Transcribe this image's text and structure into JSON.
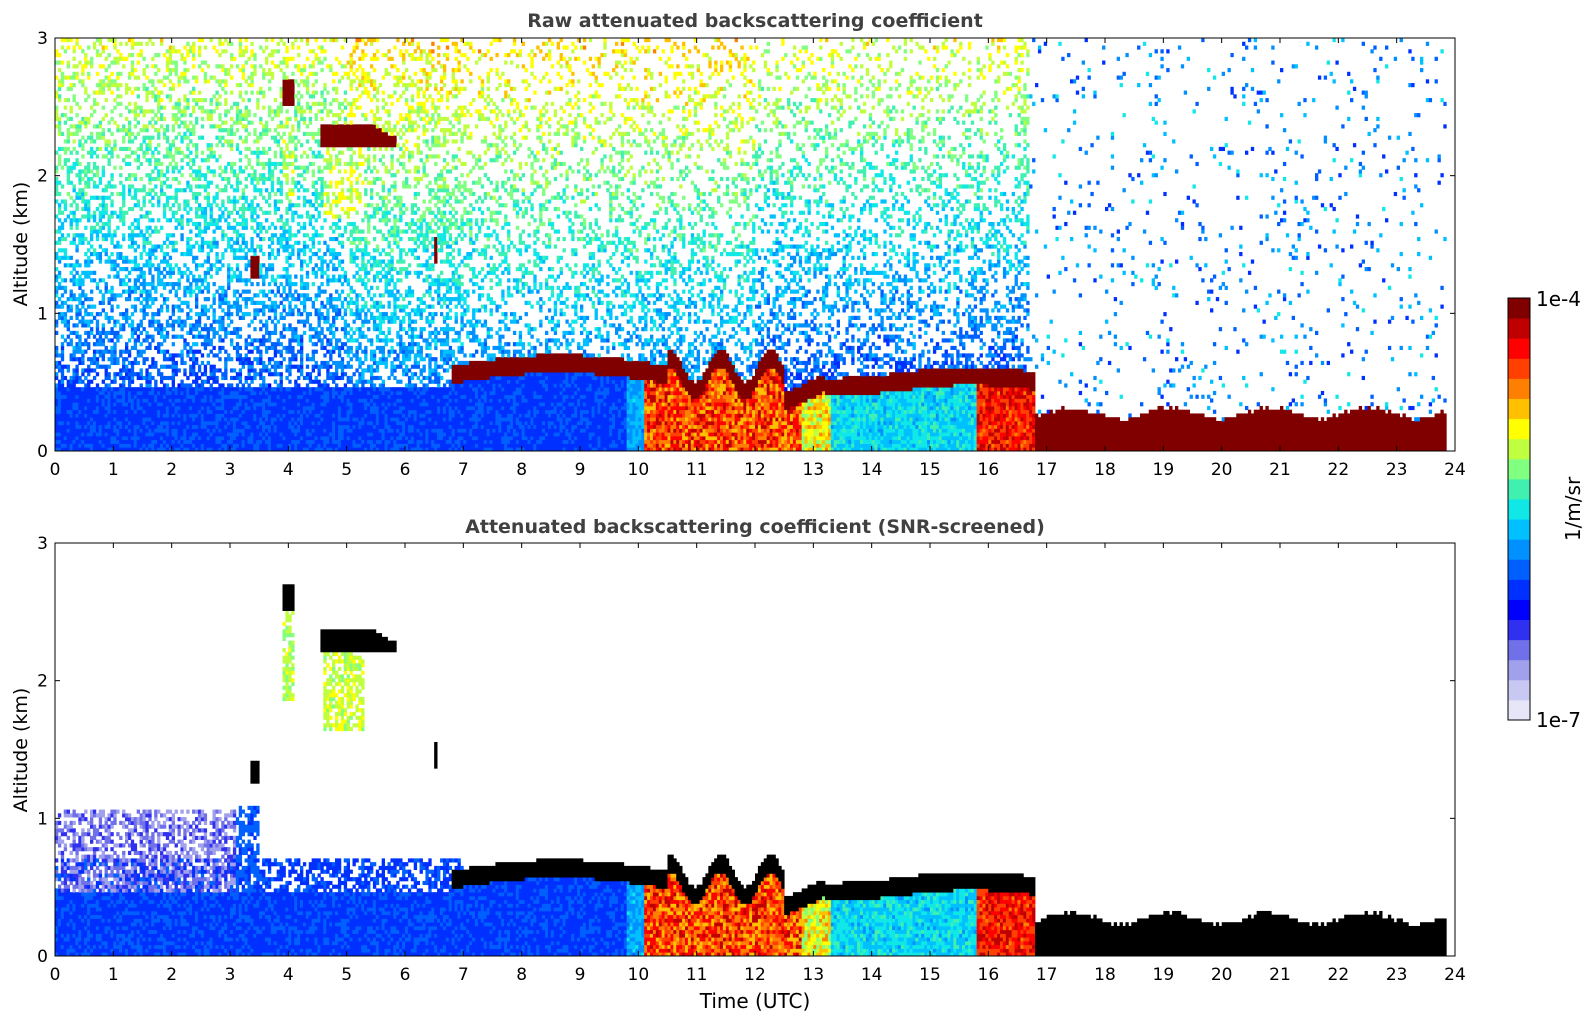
{
  "chart_data": [
    {
      "type": "heatmap",
      "title": "Raw attenuated backscattering coefficient",
      "xlabel": "",
      "ylabel": "Altitude (km)",
      "xlim": [
        0,
        24
      ],
      "ylim": [
        0,
        3
      ],
      "x_ticks": [
        "0",
        "1",
        "2",
        "3",
        "4",
        "5",
        "6",
        "7",
        "8",
        "9",
        "10",
        "11",
        "12",
        "13",
        "14",
        "15",
        "16",
        "17",
        "18",
        "19",
        "20",
        "21",
        "22",
        "23",
        "24"
      ],
      "y_ticks": [
        "0",
        "1",
        "2",
        "3"
      ],
      "screened": false,
      "features": [
        {
          "name": "boundary-layer",
          "x": [
            0,
            23.8
          ],
          "y": [
            0,
            0.45
          ]
        },
        {
          "name": "aerosol-layer-top",
          "x": [
            6.8,
            16.8
          ],
          "y": [
            0.5,
            0.65
          ]
        },
        {
          "name": "cloud-layer",
          "x": [
            16.8,
            23.8
          ],
          "y": [
            0.05,
            0.25
          ]
        },
        {
          "name": "elevated-cloud",
          "x": [
            4.5,
            5.9
          ],
          "y": [
            2.2,
            2.35
          ]
        },
        {
          "name": "elevated-cloud",
          "x": [
            3.9,
            4.1
          ],
          "y": [
            2.55,
            2.7
          ]
        }
      ]
    },
    {
      "type": "heatmap",
      "title": "Attenuated backscattering coefficient (SNR-screened)",
      "xlabel": "Time (UTC)",
      "ylabel": "Altitude (km)",
      "xlim": [
        0,
        24
      ],
      "ylim": [
        0,
        3
      ],
      "x_ticks": [
        "0",
        "1",
        "2",
        "3",
        "4",
        "5",
        "6",
        "7",
        "8",
        "9",
        "10",
        "11",
        "12",
        "13",
        "14",
        "15",
        "16",
        "17",
        "18",
        "19",
        "20",
        "21",
        "22",
        "23",
        "24"
      ],
      "y_ticks": [
        "0",
        "1",
        "2",
        "3"
      ],
      "screened": true,
      "features": [
        {
          "name": "boundary-layer",
          "x": [
            0,
            23.8
          ],
          "y": [
            0,
            0.55
          ]
        },
        {
          "name": "aerosol-layer-top",
          "x": [
            6.8,
            16.8
          ],
          "y": [
            0.5,
            0.65
          ]
        },
        {
          "name": "cloud-layer",
          "x": [
            16.8,
            23.8
          ],
          "y": [
            0.05,
            0.25
          ]
        },
        {
          "name": "elevated-cloud",
          "x": [
            4.5,
            5.9
          ],
          "y": [
            2.2,
            2.35
          ]
        },
        {
          "name": "elevated-cloud",
          "x": [
            3.9,
            4.1
          ],
          "y": [
            2.55,
            2.7
          ]
        }
      ]
    }
  ],
  "colorbar": {
    "label": "1/m/sr",
    "max_label": "1e-4",
    "min_label": "1e-7",
    "colors": [
      "#e6e6f8",
      "#c8c8f2",
      "#a0a0ec",
      "#7070e8",
      "#3030f0",
      "#0000ff",
      "#0030ff",
      "#0060ff",
      "#0090ff",
      "#00c0ff",
      "#10e8e8",
      "#40f0b0",
      "#80ff80",
      "#c0ff40",
      "#ffff00",
      "#ffc000",
      "#ff8000",
      "#ff4000",
      "#ff0000",
      "#c00000",
      "#800000"
    ]
  }
}
